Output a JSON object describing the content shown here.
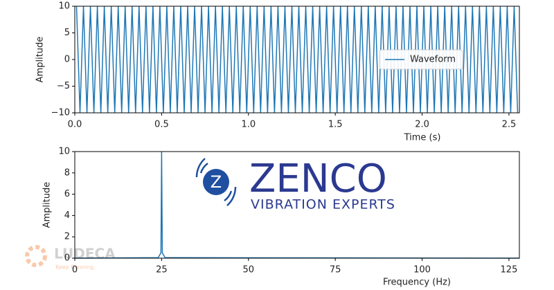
{
  "chart_data": [
    {
      "type": "line",
      "xlabel": "Time (s)",
      "ylabel": "Amplitude",
      "xlim": [
        0,
        2.56
      ],
      "ylim": [
        -10,
        10
      ],
      "xticks": [
        {
          "value": 0,
          "label": "0.0"
        },
        {
          "value": 0.5,
          "label": "0.5"
        },
        {
          "value": 1,
          "label": "1.0"
        },
        {
          "value": 1.5,
          "label": "1.5"
        },
        {
          "value": 2,
          "label": "2.0"
        },
        {
          "value": 2.5,
          "label": "2.5"
        }
      ],
      "yticks": [
        {
          "value": -10,
          "label": "−10"
        },
        {
          "value": -5,
          "label": "−5"
        },
        0,
        5,
        10
      ],
      "legend": "center right",
      "grid": false,
      "x": [
        0.01,
        0.03,
        0.05,
        0.07,
        0.09,
        0.11,
        0.13,
        0.15,
        0.17,
        0.19,
        0.21,
        0.23,
        0.25,
        0.27,
        0.29,
        0.31,
        0.33,
        0.35,
        0.37,
        0.39,
        0.41,
        0.43,
        0.45,
        0.47,
        0.49,
        0.51,
        0.53,
        0.55,
        0.57,
        0.59,
        0.61,
        0.63,
        0.65,
        0.67,
        0.69,
        0.71,
        0.73,
        0.75,
        0.77,
        0.79,
        0.81,
        0.83,
        0.85,
        0.87,
        0.89,
        0.91,
        0.93,
        0.95,
        0.97,
        0.99,
        1.01,
        1.03,
        1.05,
        1.07,
        1.09,
        1.11,
        1.13,
        1.15,
        1.17,
        1.19,
        1.21,
        1.23,
        1.25,
        1.27,
        1.29,
        1.31,
        1.33,
        1.35,
        1.37,
        1.39,
        1.41,
        1.43,
        1.45,
        1.47,
        1.49,
        1.51,
        1.53,
        1.55,
        1.57,
        1.59,
        1.61,
        1.63,
        1.65,
        1.67,
        1.69,
        1.71,
        1.73,
        1.75,
        1.77,
        1.79,
        1.81,
        1.83,
        1.85,
        1.87,
        1.89,
        1.91,
        1.93,
        1.95,
        1.97,
        1.99,
        2.01,
        2.03,
        2.05,
        2.07,
        2.09,
        2.11,
        2.13,
        2.15,
        2.17,
        2.19,
        2.21,
        2.23,
        2.25,
        2.27,
        2.29,
        2.31,
        2.33,
        2.35,
        2.37,
        2.39,
        2.41,
        2.43,
        2.45,
        2.47,
        2.49,
        2.51,
        2.53,
        2.55
      ],
      "series": [
        {
          "name": "Waveform",
          "color": "#1f77b4",
          "values": [
            10,
            -10,
            10,
            -10,
            10,
            -10,
            10,
            -10,
            10,
            -10,
            10,
            -10,
            10,
            -10,
            10,
            -10,
            10,
            -10,
            10,
            -10,
            10,
            -10,
            10,
            -10,
            10,
            -10,
            10,
            -10,
            10,
            -10,
            10,
            -10,
            10,
            -10,
            10,
            -10,
            10,
            -10,
            10,
            -10,
            10,
            -10,
            10,
            -10,
            10,
            -10,
            10,
            -10,
            10,
            -10,
            10,
            -10,
            10,
            -10,
            10,
            -10,
            10,
            -10,
            10,
            -10,
            10,
            -10,
            10,
            -10,
            10,
            -10,
            10,
            -10,
            10,
            -10,
            10,
            -10,
            10,
            -10,
            10,
            -10,
            10,
            -10,
            10,
            -10,
            10,
            -10,
            10,
            -10,
            10,
            -10,
            10,
            -10,
            10,
            -10,
            10,
            -10,
            10,
            -10,
            10,
            -10,
            10,
            -10,
            10,
            -10,
            10,
            -10,
            10,
            -10,
            10,
            -10,
            10,
            -10,
            10,
            -10,
            10,
            -10,
            10,
            -10,
            10,
            -10,
            10,
            -10,
            10,
            -10,
            10,
            -10,
            10,
            -10,
            10,
            -10,
            10,
            -10
          ]
        }
      ]
    },
    {
      "type": "line",
      "xlabel": "Frequency (Hz)",
      "ylabel": "Amplitude",
      "xlim": [
        0,
        128
      ],
      "ylim": [
        0,
        10
      ],
      "xticks": [
        0,
        25,
        50,
        75,
        100,
        125
      ],
      "yticks": [
        0,
        2,
        4,
        6,
        8,
        10
      ],
      "grid": false,
      "x": [
        0,
        24,
        24.8,
        25,
        25.2,
        26,
        128
      ],
      "series": [
        {
          "color": "#1f77b4",
          "values": [
            0,
            0.05,
            0.5,
            10,
            0.5,
            0.05,
            0
          ]
        }
      ]
    }
  ],
  "logos": {
    "zenco": "ZENCO",
    "zenco_tagline": "VIBRATION EXPERTS",
    "ludeca": "LUDECA",
    "ludeca_tagline": "Keep Running."
  }
}
